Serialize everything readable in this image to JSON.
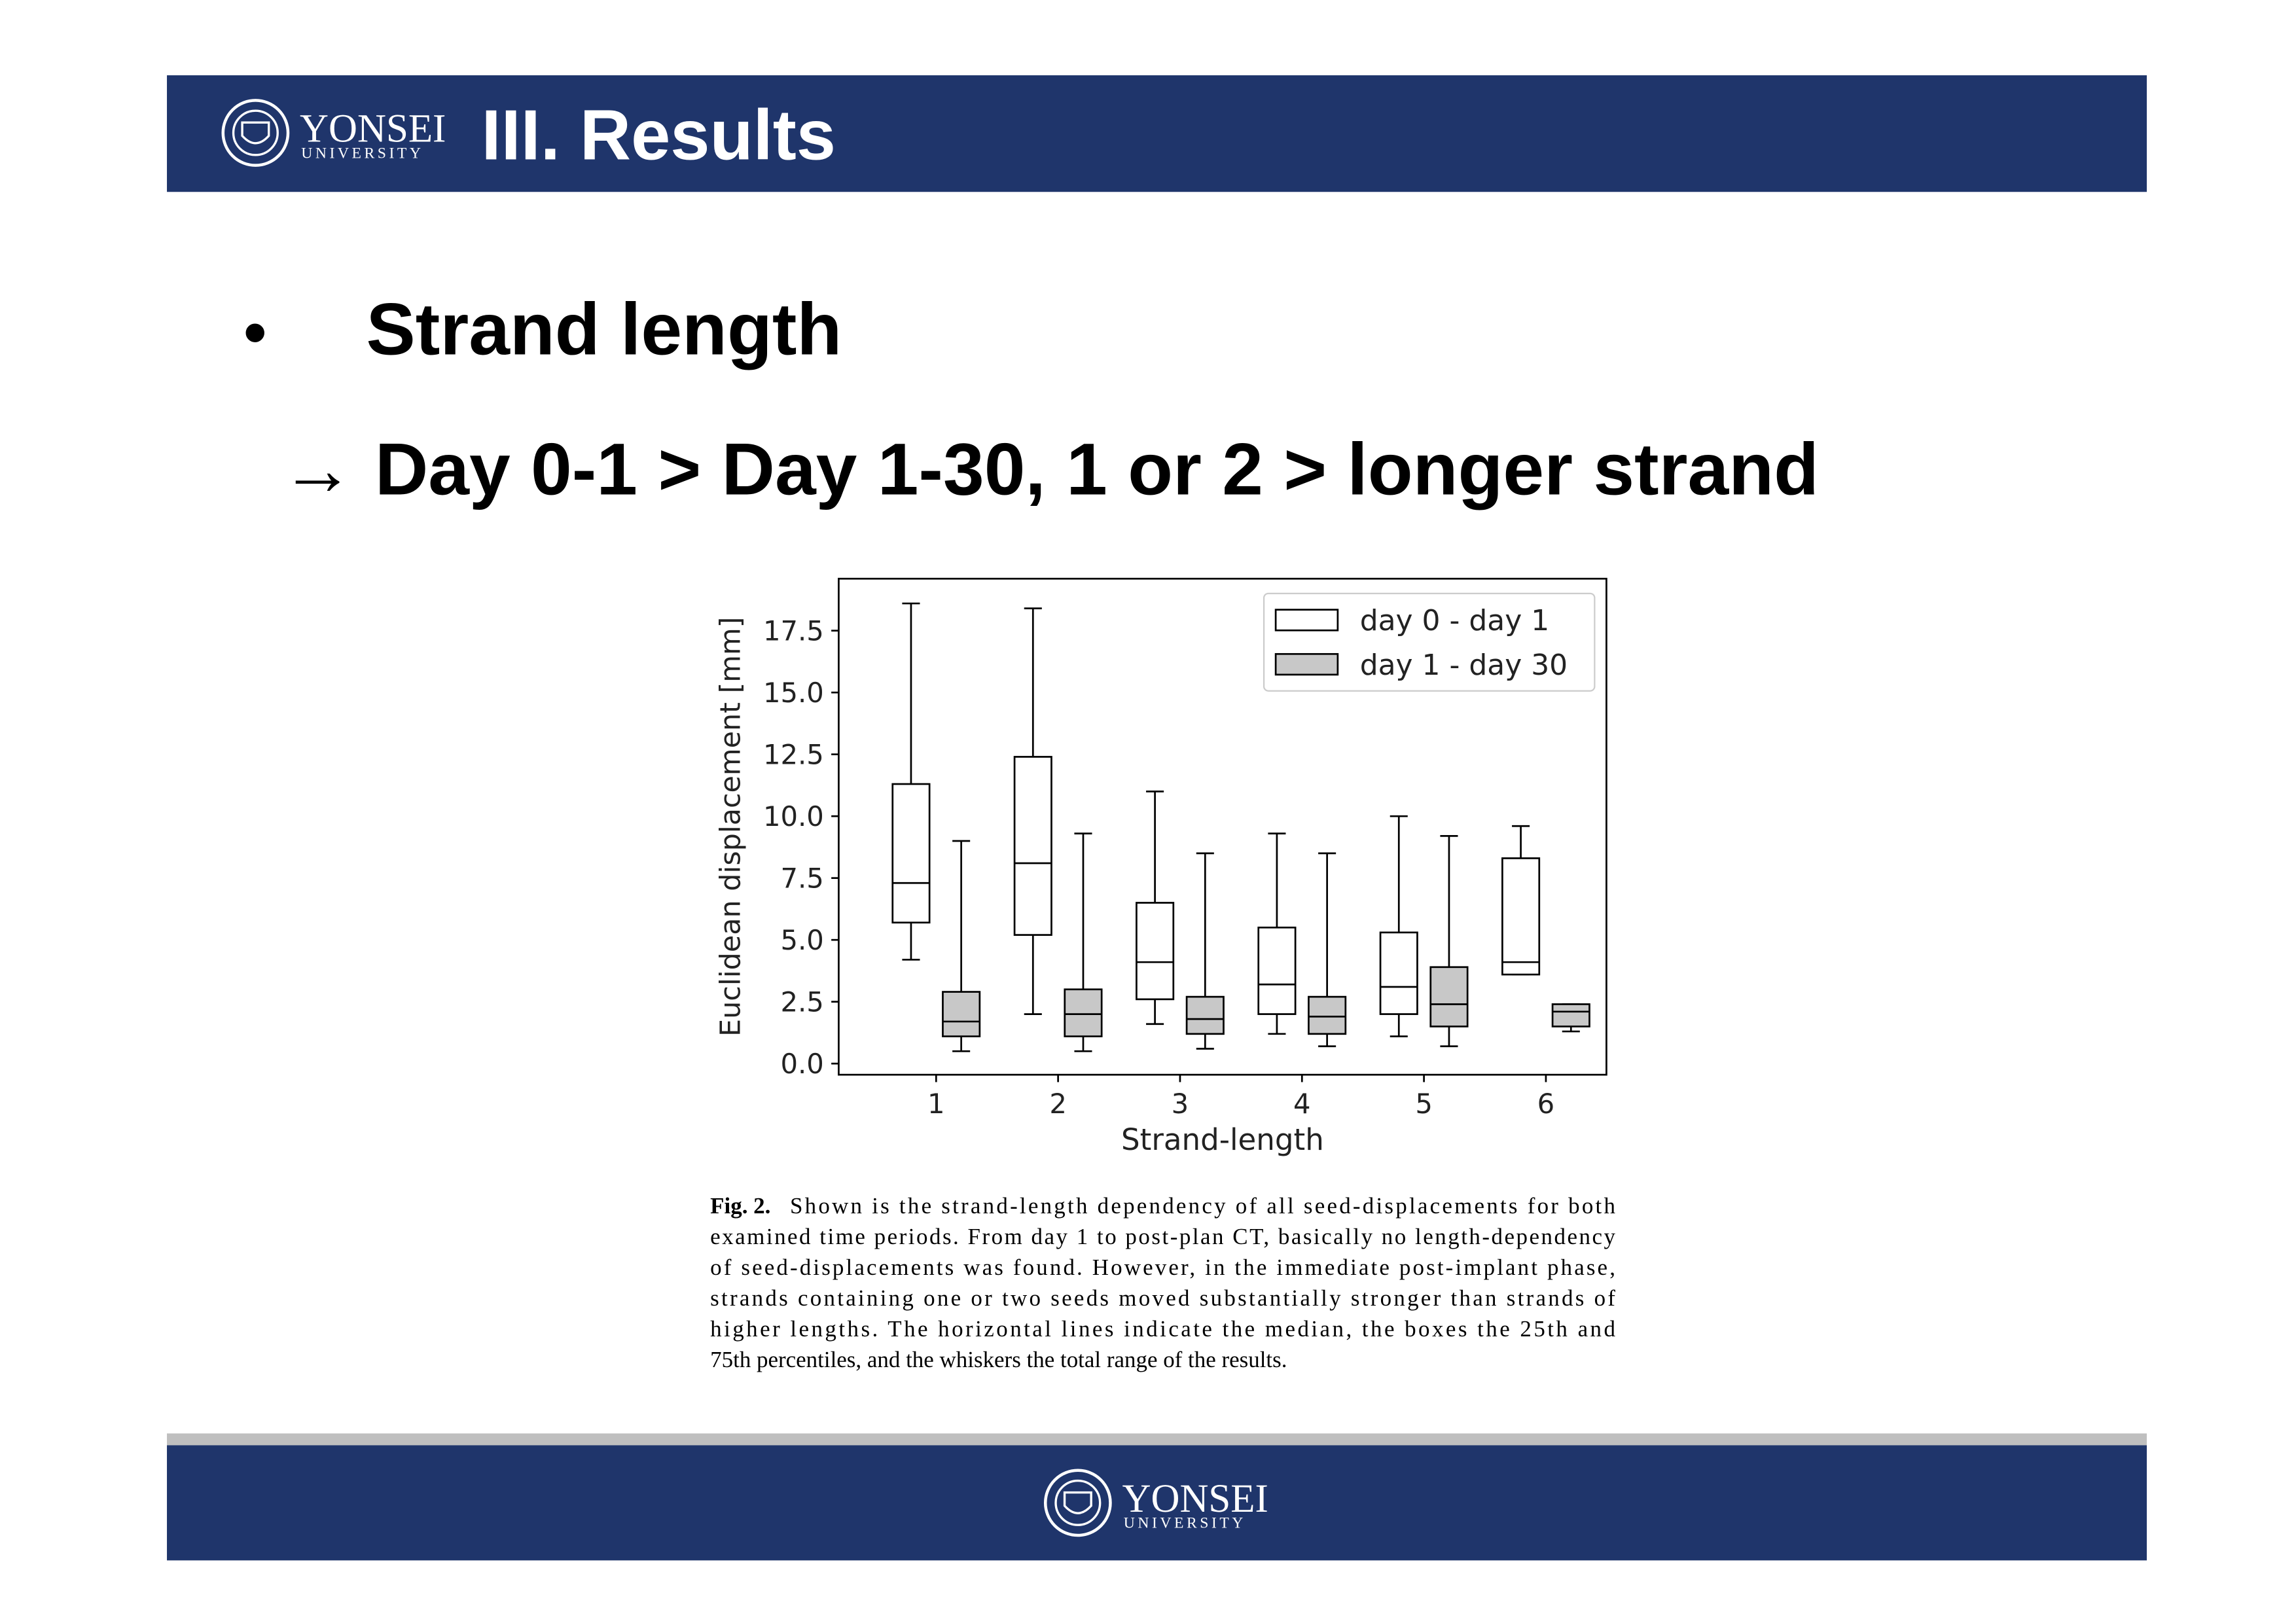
{
  "header": {
    "title": "III. Results"
  },
  "logo": {
    "name": "YONSEI",
    "sub": "UNIVERSITY"
  },
  "bullets": [
    {
      "marker": "•",
      "text": "Strand length"
    },
    {
      "text": "→ Day 0-1 > Day 1-30, 1 or 2 > longer strand"
    }
  ],
  "chart_data": {
    "type": "box",
    "xlabel": "Strand-length",
    "ylabel": "Euclidean displacement [mm]",
    "categories": [
      "1",
      "2",
      "3",
      "4",
      "5",
      "6"
    ],
    "ylim": [
      -0.45,
      19.6
    ],
    "yticks": [
      {
        "value": 0,
        "label": "0.0"
      },
      2.5,
      {
        "value": 5,
        "label": "5.0"
      },
      7.5,
      {
        "value": 10,
        "label": "10.0"
      },
      12.5,
      {
        "value": 15,
        "label": "15.0"
      },
      17.5
    ],
    "grid": false,
    "legend": "upper right",
    "series": [
      {
        "name": "day 0 - day 1",
        "color": "#ffffff",
        "min": [
          4.2,
          2.0,
          1.6,
          1.2,
          1.1,
          3.6
        ],
        "q1": [
          5.7,
          5.2,
          2.6,
          2.0,
          2.0,
          3.6
        ],
        "median": [
          7.3,
          8.1,
          4.1,
          3.2,
          3.1,
          4.1
        ],
        "q3": [
          11.3,
          12.4,
          6.5,
          5.5,
          5.3,
          8.3
        ],
        "max": [
          18.6,
          18.4,
          11.0,
          9.3,
          10.0,
          9.6
        ]
      },
      {
        "name": "day 1 - day 30",
        "color": "#c8c8c8",
        "min": [
          0.5,
          0.5,
          0.6,
          0.7,
          0.7,
          1.3
        ],
        "q1": [
          1.1,
          1.1,
          1.2,
          1.2,
          1.5,
          1.5
        ],
        "median": [
          1.7,
          2.0,
          1.8,
          1.9,
          2.4,
          2.1
        ],
        "q3": [
          2.9,
          3.0,
          2.7,
          2.7,
          3.9,
          2.4
        ],
        "max": [
          9.0,
          9.3,
          8.5,
          8.5,
          9.2,
          2.4
        ]
      }
    ]
  },
  "caption": {
    "label": "Fig. 2.",
    "lines": [
      "Shown is the strand-length dependency of all seed-displacements for both",
      "examined time periods. From day 1 to post-plan CT, basically no length-dependency",
      "of seed-displacements was found. However, in the immediate post-implant phase,",
      "strands containing one or two seeds moved substantially stronger than strands of",
      "higher lengths. The horizontal lines indicate the median, the boxes the 25th and",
      "75th percentiles, and the whiskers the total range of the results."
    ]
  }
}
